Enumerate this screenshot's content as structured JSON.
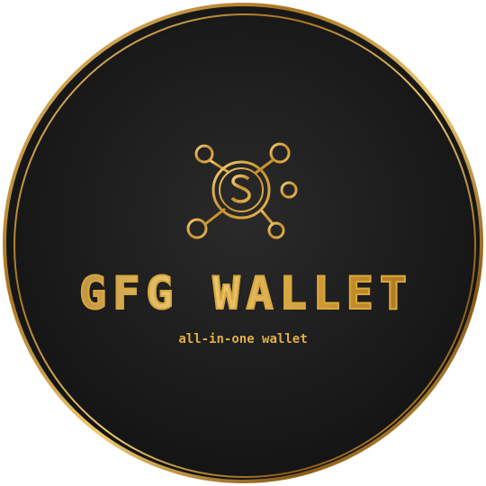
{
  "logo": {
    "brand_name": "GFG WALLET",
    "tagline": "all-in-one wallet",
    "icon": "dollar-network-icon",
    "colors": {
      "background": "#1c1c1c",
      "gold": "#d8a73a",
      "gold_light": "#f3d07a",
      "gold_dark": "#8c5e18"
    }
  }
}
